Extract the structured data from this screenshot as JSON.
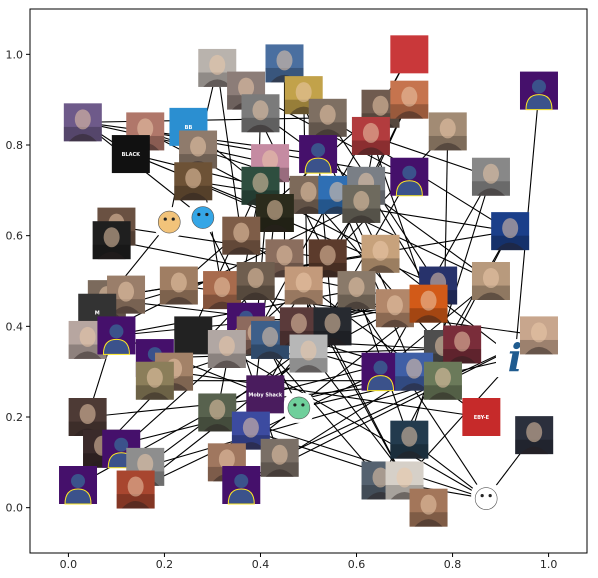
{
  "chart_data": {
    "type": "scatter",
    "description_kind": "network graph with image nodes",
    "xlim": [
      -0.08,
      1.08
    ],
    "ylim": [
      -0.1,
      1.1
    ],
    "x_ticks": [
      "0.0",
      "0.2",
      "0.4",
      "0.6",
      "0.8",
      "1.0"
    ],
    "x_tick_values": [
      0,
      0.2,
      0.4,
      0.6,
      0.8,
      1.0
    ],
    "y_ticks": [
      "0.0",
      "0.2",
      "0.4",
      "0.6",
      "0.8",
      "1.0"
    ],
    "y_tick_values": [
      0,
      0.2,
      0.4,
      0.6,
      0.8,
      1.0
    ],
    "grid": false,
    "edge_color": "#000000",
    "default_avatar_bg": "#45106b",
    "default_avatar_fg": "#3b528b",
    "default_avatar_ring": "#fde725",
    "nodes": [
      {
        "id": 0,
        "x": 0.03,
        "y": 0.85,
        "kind": "photo",
        "color": "#6e5a8a"
      },
      {
        "id": 1,
        "x": 0.16,
        "y": 0.83,
        "kind": "photo",
        "color": "#b0776a"
      },
      {
        "id": 2,
        "x": 0.13,
        "y": 0.78,
        "kind": "text",
        "color": "#111111",
        "caption": "BLACK"
      },
      {
        "id": 3,
        "x": 0.25,
        "y": 0.84,
        "kind": "logo",
        "color": "#2b8fd1",
        "caption": "BB"
      },
      {
        "id": 4,
        "x": 0.31,
        "y": 0.97,
        "kind": "photo",
        "color": "#b9b3ad"
      },
      {
        "id": 5,
        "x": 0.37,
        "y": 0.92,
        "kind": "photo",
        "color": "#8c7d78"
      },
      {
        "id": 6,
        "x": 0.4,
        "y": 0.87,
        "kind": "photo",
        "color": "#7b7b7b"
      },
      {
        "id": 7,
        "x": 0.45,
        "y": 0.98,
        "kind": "photo",
        "color": "#4a6fa0"
      },
      {
        "id": 8,
        "x": 0.49,
        "y": 0.91,
        "kind": "photo",
        "color": "#c2a24a"
      },
      {
        "id": 9,
        "x": 0.54,
        "y": 0.86,
        "kind": "photo",
        "color": "#7e6f62"
      },
      {
        "id": 10,
        "x": 0.65,
        "y": 0.88,
        "kind": "photo",
        "color": "#6f5b4f"
      },
      {
        "id": 11,
        "x": 0.71,
        "y": 0.9,
        "kind": "photo",
        "color": "#c6744e"
      },
      {
        "id": 12,
        "x": 0.71,
        "y": 1.0,
        "kind": "logo",
        "color": "#c9383a"
      },
      {
        "id": 13,
        "x": 0.98,
        "y": 0.92,
        "kind": "avatar"
      },
      {
        "id": 14,
        "x": 0.79,
        "y": 0.83,
        "kind": "photo",
        "color": "#a28b74"
      },
      {
        "id": 15,
        "x": 0.63,
        "y": 0.82,
        "kind": "photo",
        "color": "#b23c3e"
      },
      {
        "id": 16,
        "x": 0.52,
        "y": 0.78,
        "kind": "avatar"
      },
      {
        "id": 17,
        "x": 0.42,
        "y": 0.76,
        "kind": "photo",
        "color": "#c58ba2"
      },
      {
        "id": 18,
        "x": 0.27,
        "y": 0.79,
        "kind": "photo",
        "color": "#8f7b6c"
      },
      {
        "id": 19,
        "x": 0.26,
        "y": 0.72,
        "kind": "photo",
        "color": "#6d5236"
      },
      {
        "id": 20,
        "x": 0.4,
        "y": 0.71,
        "kind": "photo",
        "color": "#2e4e3f"
      },
      {
        "id": 21,
        "x": 0.5,
        "y": 0.69,
        "kind": "photo",
        "color": "#7d6a5a"
      },
      {
        "id": 22,
        "x": 0.56,
        "y": 0.69,
        "kind": "photo",
        "color": "#2f6fb4"
      },
      {
        "id": 23,
        "x": 0.62,
        "y": 0.71,
        "kind": "photo",
        "color": "#7a7f86"
      },
      {
        "id": 24,
        "x": 0.71,
        "y": 0.73,
        "kind": "avatar"
      },
      {
        "id": 25,
        "x": 0.88,
        "y": 0.73,
        "kind": "photo",
        "color": "#888888"
      },
      {
        "id": 26,
        "x": 0.92,
        "y": 0.61,
        "kind": "photo",
        "color": "#1b3f8a"
      },
      {
        "id": 27,
        "x": 0.61,
        "y": 0.67,
        "kind": "photo",
        "color": "#6e6a5e"
      },
      {
        "id": 28,
        "x": 0.43,
        "y": 0.65,
        "kind": "photo",
        "color": "#2b2b1c"
      },
      {
        "id": 29,
        "x": 0.21,
        "y": 0.63,
        "kind": "emoji",
        "color": "#f2c37a"
      },
      {
        "id": 30,
        "x": 0.28,
        "y": 0.64,
        "kind": "emoji",
        "color": "#35a6e6"
      },
      {
        "id": 31,
        "x": 0.36,
        "y": 0.6,
        "kind": "photo",
        "color": "#7e5d48"
      },
      {
        "id": 32,
        "x": 0.1,
        "y": 0.62,
        "kind": "photo",
        "color": "#6a5142"
      },
      {
        "id": 33,
        "x": 0.09,
        "y": 0.59,
        "kind": "photo",
        "color": "#1f1f1f"
      },
      {
        "id": 34,
        "x": 0.45,
        "y": 0.55,
        "kind": "photo",
        "color": "#8b6e5e"
      },
      {
        "id": 35,
        "x": 0.54,
        "y": 0.55,
        "kind": "photo",
        "color": "#5c3b2c"
      },
      {
        "id": 36,
        "x": 0.65,
        "y": 0.56,
        "kind": "photo",
        "color": "#c7a27c"
      },
      {
        "id": 37,
        "x": 0.77,
        "y": 0.49,
        "kind": "photo",
        "color": "#27326b"
      },
      {
        "id": 38,
        "x": 0.88,
        "y": 0.5,
        "kind": "photo",
        "color": "#b89a7d"
      },
      {
        "id": 39,
        "x": 0.23,
        "y": 0.49,
        "kind": "photo",
        "color": "#a07e63"
      },
      {
        "id": 40,
        "x": 0.32,
        "y": 0.48,
        "kind": "photo",
        "color": "#a86b4d"
      },
      {
        "id": 41,
        "x": 0.39,
        "y": 0.5,
        "kind": "photo",
        "color": "#6f5e4f"
      },
      {
        "id": 42,
        "x": 0.49,
        "y": 0.49,
        "kind": "photo",
        "color": "#c39a7b"
      },
      {
        "id": 43,
        "x": 0.6,
        "y": 0.48,
        "kind": "photo",
        "color": "#8a7a6a"
      },
      {
        "id": 44,
        "x": 0.68,
        "y": 0.44,
        "kind": "photo",
        "color": "#b2876a"
      },
      {
        "id": 45,
        "x": 0.75,
        "y": 0.45,
        "kind": "photo",
        "color": "#d25a18"
      },
      {
        "id": 46,
        "x": 0.08,
        "y": 0.46,
        "kind": "photo",
        "color": "#7b6a5c"
      },
      {
        "id": 47,
        "x": 0.12,
        "y": 0.47,
        "kind": "photo",
        "color": "#9a7e6a"
      },
      {
        "id": 48,
        "x": 0.06,
        "y": 0.43,
        "kind": "logo",
        "color": "#333333",
        "caption": "M"
      },
      {
        "id": 49,
        "x": 0.04,
        "y": 0.37,
        "kind": "photo",
        "color": "#b7a6a0"
      },
      {
        "id": 50,
        "x": 0.1,
        "y": 0.38,
        "kind": "avatar"
      },
      {
        "id": 51,
        "x": 0.26,
        "y": 0.38,
        "kind": "text",
        "color": "#222222"
      },
      {
        "id": 52,
        "x": 0.37,
        "y": 0.41,
        "kind": "avatar"
      },
      {
        "id": 53,
        "x": 0.39,
        "y": 0.38,
        "kind": "photo",
        "color": "#8d6a5e"
      },
      {
        "id": 54,
        "x": 0.33,
        "y": 0.35,
        "kind": "photo",
        "color": "#b1a7a3"
      },
      {
        "id": 55,
        "x": 0.42,
        "y": 0.37,
        "kind": "photo",
        "color": "#3d5f8a"
      },
      {
        "id": 56,
        "x": 0.48,
        "y": 0.4,
        "kind": "photo",
        "color": "#5a3a3a"
      },
      {
        "id": 57,
        "x": 0.55,
        "y": 0.4,
        "kind": "photo",
        "color": "#272a30"
      },
      {
        "id": 58,
        "x": 0.5,
        "y": 0.34,
        "kind": "photo",
        "color": "#b7b7b7"
      },
      {
        "id": 59,
        "x": 0.78,
        "y": 0.35,
        "kind": "photo",
        "color": "#4e4e4e"
      },
      {
        "id": 60,
        "x": 0.82,
        "y": 0.36,
        "kind": "photo",
        "color": "#7a2d3a"
      },
      {
        "id": 61,
        "x": 0.93,
        "y": 0.33,
        "kind": "logo",
        "color": "#1f5b8f",
        "caption": "i"
      },
      {
        "id": 62,
        "x": 0.98,
        "y": 0.38,
        "kind": "photo",
        "color": "#c8a68d"
      },
      {
        "id": 63,
        "x": 0.18,
        "y": 0.33,
        "kind": "avatar"
      },
      {
        "id": 64,
        "x": 0.22,
        "y": 0.3,
        "kind": "photo",
        "color": "#a38268"
      },
      {
        "id": 65,
        "x": 0.18,
        "y": 0.28,
        "kind": "photo",
        "color": "#8b7e5a"
      },
      {
        "id": 66,
        "x": 0.65,
        "y": 0.3,
        "kind": "avatar"
      },
      {
        "id": 67,
        "x": 0.72,
        "y": 0.3,
        "kind": "photo",
        "color": "#3f5fa6"
      },
      {
        "id": 68,
        "x": 0.78,
        "y": 0.28,
        "kind": "photo",
        "color": "#6b7a5a"
      },
      {
        "id": 69,
        "x": 0.31,
        "y": 0.21,
        "kind": "photo",
        "color": "#58624e"
      },
      {
        "id": 70,
        "x": 0.41,
        "y": 0.25,
        "kind": "logo",
        "color": "#4a1c5e",
        "caption": "Moby Shack"
      },
      {
        "id": 71,
        "x": 0.48,
        "y": 0.22,
        "kind": "emoji",
        "color": "#6fcf9b"
      },
      {
        "id": 72,
        "x": 0.04,
        "y": 0.2,
        "kind": "photo",
        "color": "#4d3a35"
      },
      {
        "id": 73,
        "x": 0.07,
        "y": 0.13,
        "kind": "photo",
        "color": "#3a2a2a"
      },
      {
        "id": 74,
        "x": 0.11,
        "y": 0.13,
        "kind": "avatar"
      },
      {
        "id": 75,
        "x": 0.38,
        "y": 0.17,
        "kind": "photo",
        "color": "#3c4ba0"
      },
      {
        "id": 76,
        "x": 0.33,
        "y": 0.1,
        "kind": "photo",
        "color": "#a0775f"
      },
      {
        "id": 77,
        "x": 0.44,
        "y": 0.11,
        "kind": "photo",
        "color": "#7a6f66"
      },
      {
        "id": 78,
        "x": 0.86,
        "y": 0.2,
        "kind": "logo",
        "color": "#c62a2a",
        "caption": "EBY-E"
      },
      {
        "id": 79,
        "x": 0.97,
        "y": 0.16,
        "kind": "photo",
        "color": "#2b2f3c"
      },
      {
        "id": 80,
        "x": 0.71,
        "y": 0.15,
        "kind": "photo",
        "color": "#233b4e"
      },
      {
        "id": 81,
        "x": 0.16,
        "y": 0.09,
        "kind": "photo",
        "color": "#8e8e8e"
      },
      {
        "id": 82,
        "x": 0.14,
        "y": 0.04,
        "kind": "photo",
        "color": "#a8462f"
      },
      {
        "id": 83,
        "x": 0.02,
        "y": 0.05,
        "kind": "avatar"
      },
      {
        "id": 84,
        "x": 0.36,
        "y": 0.05,
        "kind": "avatar"
      },
      {
        "id": 85,
        "x": 0.65,
        "y": 0.06,
        "kind": "photo",
        "color": "#556270"
      },
      {
        "id": 86,
        "x": 0.7,
        "y": 0.06,
        "kind": "photo",
        "color": "#d6d0c8"
      },
      {
        "id": 87,
        "x": 0.75,
        "y": 0.0,
        "kind": "photo",
        "color": "#a3765a"
      },
      {
        "id": 88,
        "x": 0.87,
        "y": 0.02,
        "kind": "emoji",
        "color": "#ffffff"
      }
    ],
    "edges": [
      [
        0,
        17
      ],
      [
        0,
        16
      ],
      [
        0,
        9
      ],
      [
        0,
        2
      ],
      [
        0,
        30
      ],
      [
        1,
        24
      ],
      [
        1,
        22
      ],
      [
        1,
        36
      ],
      [
        2,
        28
      ],
      [
        2,
        20
      ],
      [
        3,
        29
      ],
      [
        4,
        18
      ],
      [
        4,
        31
      ],
      [
        5,
        35
      ],
      [
        5,
        24
      ],
      [
        6,
        41
      ],
      [
        7,
        34
      ],
      [
        7,
        44
      ],
      [
        8,
        58
      ],
      [
        8,
        36
      ],
      [
        9,
        37
      ],
      [
        10,
        23
      ],
      [
        10,
        39
      ],
      [
        11,
        27
      ],
      [
        11,
        56
      ],
      [
        13,
        61
      ],
      [
        14,
        68
      ],
      [
        14,
        42
      ],
      [
        15,
        25
      ],
      [
        15,
        45
      ],
      [
        16,
        57
      ],
      [
        17,
        64
      ],
      [
        17,
        53
      ],
      [
        18,
        40
      ],
      [
        19,
        26
      ],
      [
        19,
        37
      ],
      [
        20,
        69
      ],
      [
        21,
        38
      ],
      [
        22,
        67
      ],
      [
        23,
        60
      ],
      [
        24,
        58
      ],
      [
        25,
        66
      ],
      [
        25,
        80
      ],
      [
        26,
        59
      ],
      [
        26,
        85
      ],
      [
        27,
        55
      ],
      [
        28,
        75
      ],
      [
        29,
        46
      ],
      [
        30,
        71
      ],
      [
        31,
        78
      ],
      [
        32,
        35
      ],
      [
        33,
        45
      ],
      [
        34,
        86
      ],
      [
        35,
        88
      ],
      [
        36,
        61
      ],
      [
        37,
        83
      ],
      [
        38,
        66
      ],
      [
        39,
        62
      ],
      [
        40,
        77
      ],
      [
        41,
        87
      ],
      [
        42,
        74
      ],
      [
        43,
        80
      ],
      [
        44,
        63
      ],
      [
        46,
        57
      ],
      [
        47,
        36
      ],
      [
        48,
        34
      ],
      [
        49,
        43
      ],
      [
        50,
        44
      ],
      [
        51,
        59
      ],
      [
        52,
        67
      ],
      [
        53,
        85
      ],
      [
        54,
        88
      ],
      [
        55,
        66
      ],
      [
        56,
        76
      ],
      [
        57,
        81
      ],
      [
        58,
        82
      ],
      [
        60,
        70
      ],
      [
        62,
        84
      ],
      [
        63,
        59
      ],
      [
        64,
        78
      ],
      [
        65,
        68
      ],
      [
        67,
        73
      ],
      [
        68,
        72
      ],
      [
        69,
        88
      ],
      [
        70,
        36
      ],
      [
        71,
        61
      ],
      [
        72,
        47
      ],
      [
        73,
        34
      ],
      [
        75,
        86
      ],
      [
        76,
        45
      ],
      [
        77,
        62
      ],
      [
        79,
        88
      ],
      [
        80,
        88
      ],
      [
        81,
        68
      ],
      [
        82,
        66
      ],
      [
        84,
        60
      ],
      [
        85,
        88
      ],
      [
        86,
        61
      ],
      [
        12,
        10
      ],
      [
        3,
        20
      ],
      [
        6,
        38
      ],
      [
        9,
        26
      ],
      [
        21,
        59
      ],
      [
        42,
        86
      ],
      [
        47,
        26
      ],
      [
        49,
        27
      ],
      [
        50,
        71
      ],
      [
        54,
        37
      ],
      [
        65,
        37
      ],
      [
        53,
        12
      ]
    ]
  }
}
